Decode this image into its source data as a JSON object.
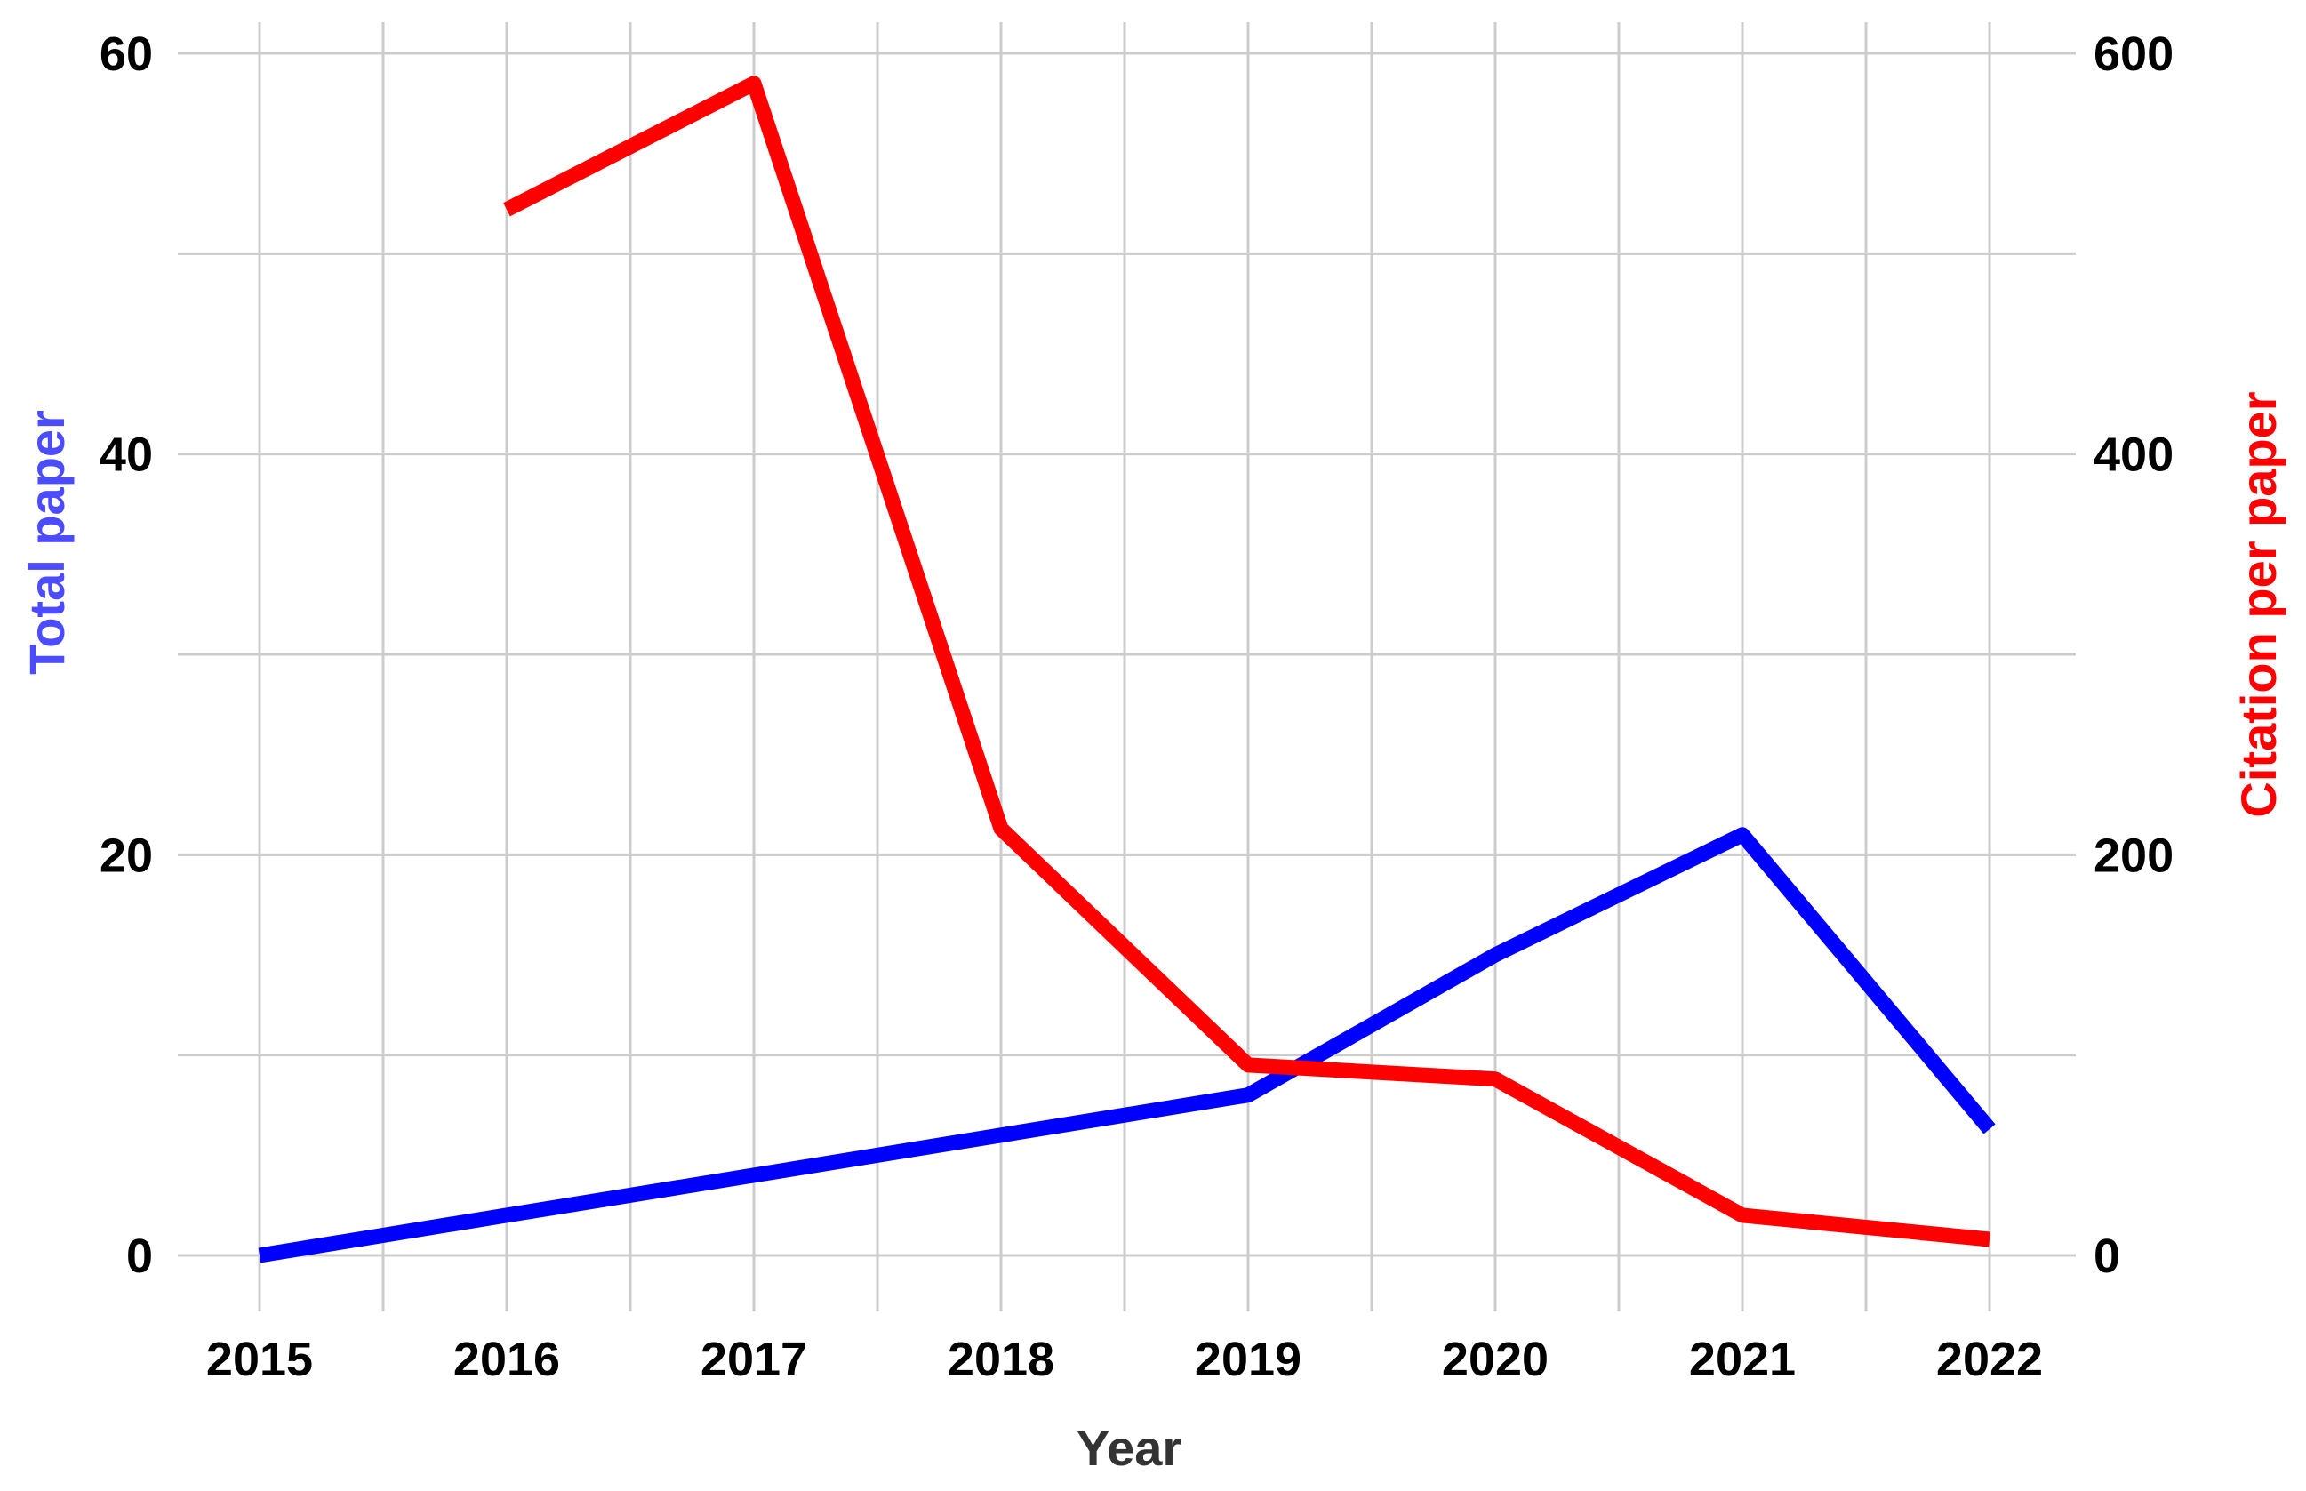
{
  "chart_data": {
    "type": "line",
    "x": [
      2015,
      2016,
      2017,
      2018,
      2019,
      2020,
      2021,
      2022
    ],
    "xlabel": "Year",
    "ylabel_left": "Total paper",
    "ylabel_right": "Citation per paper",
    "ylim_left": [
      0,
      60
    ],
    "ylim_right": [
      0,
      600
    ],
    "yticks_left": [
      0,
      20,
      40,
      60
    ],
    "yticks_right": [
      0,
      200,
      400,
      600
    ],
    "xticks": [
      "2015",
      "2016",
      "2017",
      "2018",
      "2019",
      "2020",
      "2021",
      "2022"
    ],
    "grid": true,
    "series": [
      {
        "axis": "left",
        "color": "#0000ff",
        "points": [
          [
            2015,
            0
          ],
          [
            2016,
            2
          ],
          [
            2017,
            4
          ],
          [
            2018,
            6
          ],
          [
            2019,
            8
          ],
          [
            2020,
            15
          ],
          [
            2021,
            21
          ],
          [
            2022,
            6.3
          ]
        ]
      },
      {
        "axis": "right",
        "color": "#ff0000",
        "points": [
          [
            2016,
            522
          ],
          [
            2017,
            585
          ],
          [
            2018,
            213
          ],
          [
            2019,
            95
          ],
          [
            2020,
            88
          ],
          [
            2021,
            20
          ],
          [
            2022,
            8
          ]
        ]
      }
    ],
    "colors": {
      "left_axis_title": "#4b4bff",
      "right_axis_title": "#ff0000",
      "gridline": "#cccccc",
      "text": "#000000"
    }
  }
}
